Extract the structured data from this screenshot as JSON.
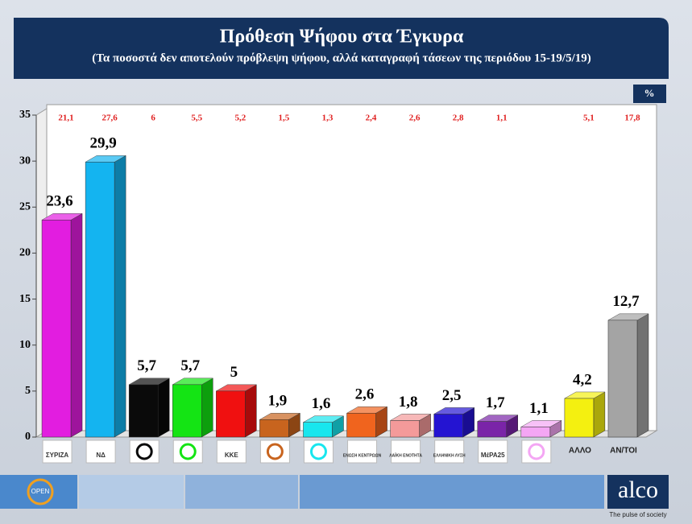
{
  "chart_data": {
    "type": "bar3d",
    "title": "Πρόθεση Ψήφου στα Έγκυρα",
    "subtitle": "(Τα ποσοστά δεν αποτελούν πρόβλεψη ψήφου, αλλά καταγραφή τάσεων της περιόδου 15-19/5/19)",
    "unit": "%",
    "categories": [
      "ΣΥΡΙΖΑ",
      "ΝΔ",
      null,
      null,
      "ΚΚΕ",
      null,
      null,
      "ΕΝΩΣΗ ΚΕΝΤΡΩΩΝ",
      "ΛΑΪΚΗ ΕΝΟΤΗΤΑ",
      "ΕΛΛΗΝΙΚΗ ΛΥΣΗ",
      "ΜέΡΑ25",
      null,
      "ΑΛΛΟ",
      "ΑΝ/ΤΟΙ"
    ],
    "values": [
      23.6,
      29.9,
      5.7,
      5.7,
      5,
      1.9,
      1.6,
      2.6,
      1.8,
      2.5,
      1.7,
      1.1,
      4.2,
      12.7
    ],
    "value_labels": [
      "23,6",
      "29,9",
      "5,7",
      "5,7",
      "5",
      "1,9",
      "1,6",
      "2,6",
      "1,8",
      "2,5",
      "1,7",
      "1,1",
      "4,2",
      "12,7"
    ],
    "colors": [
      "#e21de0",
      "#14b4f0",
      "#0a0a0a",
      "#14e414",
      "#f01010",
      "#c8641e",
      "#18e6ee",
      "#f0641e",
      "#f49a9a",
      "#2414d2",
      "#7a24a8",
      "#f4a6f4",
      "#f4f010",
      "#a4a4a4"
    ],
    "comparison_values": [
      21.1,
      27.6,
      6,
      5.5,
      5.2,
      1.5,
      1.3,
      2.4,
      2.6,
      2.8,
      1.1,
      null,
      5.1,
      17.8
    ],
    "comparison_labels": [
      "21,1",
      "27,6",
      "6",
      "5,5",
      "5,2",
      "1,5",
      "1,3",
      "2,4",
      "2,6",
      "2,8",
      "1,1",
      null,
      "5,1",
      "17,8"
    ],
    "comparison_color": "#e02020",
    "ylim": [
      0,
      35
    ],
    "yticks": [
      0,
      5,
      10,
      15,
      20,
      25,
      30,
      35
    ]
  },
  "footer": {
    "channel": "OPEN",
    "brand": "alco",
    "tagline": "The pulse of society"
  }
}
